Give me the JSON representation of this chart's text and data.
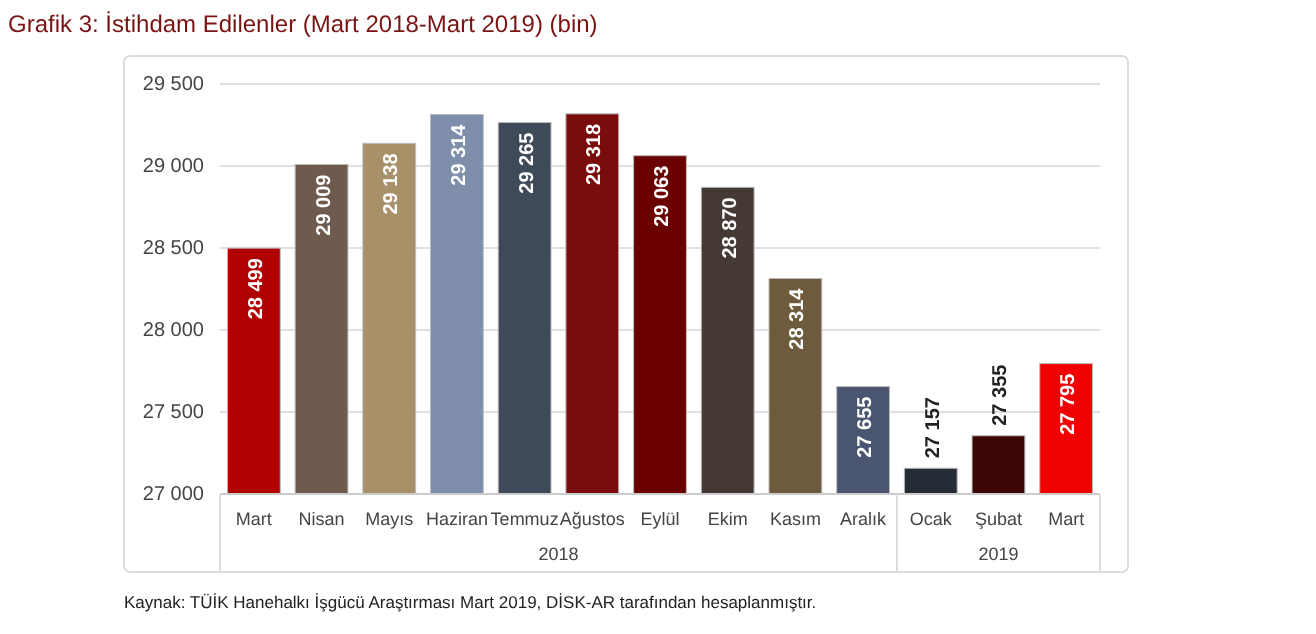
{
  "chart_data": {
    "type": "bar",
    "title": "Grafik 3: İstihdam Edilenler (Mart 2018-Mart 2019) (bin)",
    "categories": [
      "Mart",
      "Nisan",
      "Mayıs",
      "Haziran",
      "Temmuz",
      "Ağustos",
      "Eylül",
      "Ekim",
      "Kasım",
      "Aralık",
      "Ocak",
      "Şubat",
      "Mart"
    ],
    "values": [
      28499,
      29009,
      29138,
      29314,
      29265,
      29318,
      29063,
      28870,
      28314,
      27655,
      27157,
      27355,
      27795
    ],
    "colors": [
      "#b00000",
      "#6e5a4e",
      "#a89068",
      "#7f8fab",
      "#3f4a59",
      "#7a0c0c",
      "#6a0000",
      "#453a33",
      "#6e5a3c",
      "#4a5670",
      "#252c35",
      "#3d0505",
      "#f00000"
    ],
    "value_labels": [
      "28 499",
      "29 009",
      "29 138",
      "29 314",
      "29 265",
      "29 318",
      "29 063",
      "28 870",
      "28 314",
      "27 655",
      "27 157",
      "27 355",
      "27 795"
    ],
    "ylim": [
      27000,
      29500
    ],
    "yticks": [
      {
        "value": 27000,
        "label": "27 000"
      },
      {
        "value": 27500,
        "label": "27 500"
      },
      {
        "value": 28000,
        "label": "28 000"
      },
      {
        "value": 28500,
        "label": "28 500"
      },
      {
        "value": 29000,
        "label": "29 000"
      },
      {
        "value": 29500,
        "label": "29 500"
      }
    ],
    "grid": "y",
    "annotations": [
      "2018",
      "2019",
      "Kaynak: TÜİK Hanehalkı İşgücü Araştırması Mart 2019, DİSK-AR tarafından hesaplanmıştır."
    ]
  }
}
